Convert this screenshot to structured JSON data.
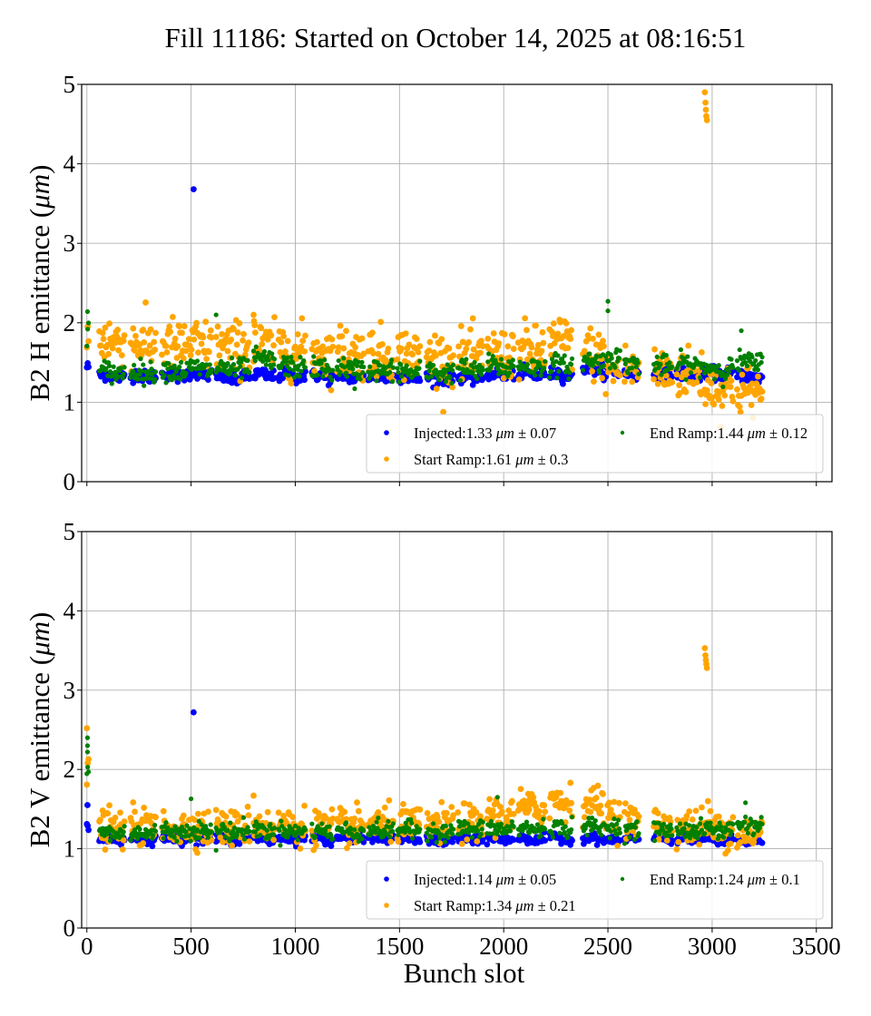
{
  "figure": {
    "title": "Fill 11186: Started on October 14, 2025 at 08:16:51"
  },
  "chart_data": [
    {
      "type": "scatter",
      "panel": "top",
      "title": "",
      "xlabel": "",
      "ylabel": "B2 H emittance (μm)",
      "ylabel_parts": {
        "prefix": "B2 H emittance (",
        "unit": "μm",
        "suffix": ")"
      },
      "xlim": [
        -25,
        3575
      ],
      "ylim": [
        0,
        5
      ],
      "xticks": [
        0,
        500,
        1000,
        1500,
        2000,
        2500,
        3000,
        3500
      ],
      "xtick_labels_visible": false,
      "yticks": [
        0,
        1,
        2,
        3,
        4,
        5
      ],
      "ytick_labels": [
        "0",
        "1",
        "2",
        "3",
        "4",
        "5"
      ],
      "grid": true,
      "legend": {
        "placement": "lower-right",
        "ncol": 2
      },
      "series": [
        {
          "name": "Injected",
          "legend_label": "Injected:1.33",
          "mean": 1.33,
          "std": 0.07,
          "unit": "μm",
          "color": "#0000ff",
          "batches": [
            [
              0,
              10,
              1.45
            ],
            [
              60,
              180,
              1.33
            ],
            [
              210,
              330,
              1.33
            ],
            [
              360,
              480,
              1.34
            ],
            [
              490,
              600,
              1.36
            ],
            [
              620,
              780,
              1.3
            ],
            [
              800,
              900,
              1.34
            ],
            [
              920,
              1050,
              1.33
            ],
            [
              1080,
              1180,
              1.32
            ],
            [
              1200,
              1330,
              1.32
            ],
            [
              1350,
              1470,
              1.32
            ],
            [
              1490,
              1600,
              1.31
            ],
            [
              1630,
              1760,
              1.3
            ],
            [
              1780,
              1900,
              1.31
            ],
            [
              1920,
              2050,
              1.35
            ],
            [
              2070,
              2200,
              1.35
            ],
            [
              2220,
              2330,
              1.35
            ],
            [
              2380,
              2480,
              1.42
            ],
            [
              2490,
              2560,
              1.38
            ],
            [
              2580,
              2650,
              1.35
            ],
            [
              2720,
              2810,
              1.35
            ],
            [
              2830,
              2950,
              1.34
            ],
            [
              2960,
              3100,
              1.36
            ],
            [
              3120,
              3240,
              1.32
            ]
          ],
          "outliers": [
            [
              512,
              3.68
            ]
          ]
        },
        {
          "name": "Start Ramp",
          "legend_label": "Start Ramp:1.61",
          "mean": 1.61,
          "std": 0.3,
          "unit": "μm",
          "color": "#ffa500",
          "batches": [
            [
              0,
              10,
              1.75
            ],
            [
              60,
              180,
              1.78
            ],
            [
              210,
              330,
              1.73
            ],
            [
              360,
              480,
              1.72
            ],
            [
              490,
              600,
              1.72
            ],
            [
              620,
              780,
              1.7
            ],
            [
              800,
              900,
              1.68
            ],
            [
              920,
              1050,
              1.66
            ],
            [
              1080,
              1180,
              1.64
            ],
            [
              1200,
              1330,
              1.63
            ],
            [
              1350,
              1470,
              1.62
            ],
            [
              1490,
              1600,
              1.6
            ],
            [
              1630,
              1760,
              1.56
            ],
            [
              1780,
              1900,
              1.55
            ],
            [
              1920,
              2050,
              1.6
            ],
            [
              2070,
              2200,
              1.65
            ],
            [
              2220,
              2330,
              1.76
            ],
            [
              2380,
              2480,
              1.6
            ],
            [
              2490,
              2560,
              1.4
            ],
            [
              2580,
              2650,
              1.42
            ],
            [
              2720,
              2810,
              1.38
            ],
            [
              2830,
              2950,
              1.36
            ],
            [
              2960,
              3100,
              1.18
            ],
            [
              3120,
              3240,
              1.13
            ]
          ],
          "outliers": [
            [
              800,
              2.1
            ],
            [
              802,
              2.02
            ],
            [
              805,
              1.97
            ],
            [
              2965,
              4.9
            ],
            [
              2968,
              4.77
            ],
            [
              2970,
              4.68
            ],
            [
              2972,
              4.6
            ],
            [
              2975,
              4.55
            ]
          ]
        },
        {
          "name": "End Ramp",
          "legend_label": "End Ramp:1.44",
          "mean": 1.44,
          "std": 0.12,
          "unit": "μm",
          "color": "#008000",
          "batches": [
            [
              0,
              10,
              1.9
            ],
            [
              60,
              180,
              1.38
            ],
            [
              210,
              330,
              1.38
            ],
            [
              360,
              480,
              1.4
            ],
            [
              490,
              600,
              1.42
            ],
            [
              620,
              780,
              1.42
            ],
            [
              800,
              900,
              1.53
            ],
            [
              920,
              1050,
              1.45
            ],
            [
              1080,
              1180,
              1.42
            ],
            [
              1200,
              1330,
              1.42
            ],
            [
              1350,
              1470,
              1.4
            ],
            [
              1490,
              1600,
              1.38
            ],
            [
              1630,
              1760,
              1.38
            ],
            [
              1780,
              1900,
              1.4
            ],
            [
              1920,
              2050,
              1.45
            ],
            [
              2070,
              2200,
              1.45
            ],
            [
              2220,
              2330,
              1.46
            ],
            [
              2380,
              2480,
              1.52
            ],
            [
              2490,
              2560,
              1.55
            ],
            [
              2580,
              2650,
              1.48
            ],
            [
              2720,
              2810,
              1.45
            ],
            [
              2830,
              2950,
              1.47
            ],
            [
              2960,
              3100,
              1.42
            ],
            [
              3120,
              3240,
              1.5
            ]
          ],
          "outliers": [
            [
              3,
              2.14
            ],
            [
              620,
              2.1
            ],
            [
              2500,
              2.27
            ],
            [
              2500,
              2.15
            ],
            [
              3140,
              1.9
            ],
            [
              1285,
              1.17
            ]
          ]
        }
      ]
    },
    {
      "type": "scatter",
      "panel": "bottom",
      "title": "",
      "xlabel": "Bunch slot",
      "ylabel": "B2 V emittance (μm)",
      "ylabel_parts": {
        "prefix": "B2 V emittance (",
        "unit": "μm",
        "suffix": ")"
      },
      "xlim": [
        -25,
        3575
      ],
      "ylim": [
        0,
        5
      ],
      "xticks": [
        0,
        500,
        1000,
        1500,
        2000,
        2500,
        3000,
        3500
      ],
      "xtick_labels": [
        "0",
        "500",
        "1000",
        "1500",
        "2000",
        "2500",
        "3000",
        "3500"
      ],
      "xtick_labels_visible": true,
      "yticks": [
        0,
        1,
        2,
        3,
        4,
        5
      ],
      "ytick_labels": [
        "0",
        "1",
        "2",
        "3",
        "4",
        "5"
      ],
      "grid": true,
      "legend": {
        "placement": "lower-right",
        "ncol": 2
      },
      "series": [
        {
          "name": "Injected",
          "legend_label": "Injected:1.14",
          "mean": 1.14,
          "std": 0.05,
          "unit": "μm",
          "color": "#0000ff",
          "batches": [
            [
              0,
              10,
              1.3
            ],
            [
              60,
              180,
              1.12
            ],
            [
              210,
              330,
              1.12
            ],
            [
              360,
              480,
              1.13
            ],
            [
              490,
              600,
              1.13
            ],
            [
              620,
              780,
              1.12
            ],
            [
              800,
              900,
              1.12
            ],
            [
              920,
              1050,
              1.13
            ],
            [
              1080,
              1180,
              1.12
            ],
            [
              1200,
              1330,
              1.13
            ],
            [
              1350,
              1470,
              1.13
            ],
            [
              1490,
              1600,
              1.12
            ],
            [
              1630,
              1760,
              1.1
            ],
            [
              1780,
              1900,
              1.11
            ],
            [
              1920,
              2050,
              1.12
            ],
            [
              2070,
              2200,
              1.12
            ],
            [
              2220,
              2330,
              1.13
            ],
            [
              2380,
              2480,
              1.13
            ],
            [
              2490,
              2560,
              1.1
            ],
            [
              2580,
              2650,
              1.12
            ],
            [
              2720,
              2810,
              1.12
            ],
            [
              2830,
              2950,
              1.12
            ],
            [
              2960,
              3100,
              1.1
            ],
            [
              3120,
              3240,
              1.1
            ]
          ],
          "outliers": [
            [
              512,
              2.72
            ],
            [
              3,
              1.55
            ]
          ]
        },
        {
          "name": "Start Ramp",
          "legend_label": "Start Ramp:1.34",
          "mean": 1.34,
          "std": 0.21,
          "unit": "μm",
          "color": "#ffa500",
          "batches": [
            [
              0,
              10,
              1.9
            ],
            [
              60,
              180,
              1.25
            ],
            [
              210,
              330,
              1.27
            ],
            [
              360,
              480,
              1.27
            ],
            [
              490,
              600,
              1.28
            ],
            [
              620,
              780,
              1.27
            ],
            [
              800,
              900,
              1.3
            ],
            [
              920,
              1050,
              1.28
            ],
            [
              1080,
              1180,
              1.27
            ],
            [
              1200,
              1330,
              1.27
            ],
            [
              1350,
              1470,
              1.3
            ],
            [
              1490,
              1600,
              1.3
            ],
            [
              1630,
              1760,
              1.3
            ],
            [
              1780,
              1900,
              1.32
            ],
            [
              1920,
              2050,
              1.42
            ],
            [
              2070,
              2200,
              1.5
            ],
            [
              2220,
              2330,
              1.6
            ],
            [
              2380,
              2480,
              1.55
            ],
            [
              2490,
              2560,
              1.42
            ],
            [
              2580,
              2650,
              1.35
            ],
            [
              2720,
              2810,
              1.28
            ],
            [
              2830,
              2950,
              1.27
            ],
            [
              2960,
              3100,
              1.25
            ],
            [
              3120,
              3240,
              1.2
            ]
          ],
          "outliers": [
            [
              0,
              2.52
            ],
            [
              800,
              1.67
            ],
            [
              2965,
              3.53
            ],
            [
              2968,
              3.44
            ],
            [
              2970,
              3.38
            ],
            [
              2972,
              3.33
            ],
            [
              2975,
              3.28
            ],
            [
              2980,
              1.6
            ]
          ]
        },
        {
          "name": "End Ramp",
          "legend_label": "End Ramp:1.24",
          "mean": 1.24,
          "std": 0.1,
          "unit": "μm",
          "color": "#008000",
          "batches": [
            [
              0,
              10,
              2.0
            ],
            [
              60,
              180,
              1.2
            ],
            [
              210,
              330,
              1.2
            ],
            [
              360,
              480,
              1.22
            ],
            [
              490,
              600,
              1.23
            ],
            [
              620,
              780,
              1.22
            ],
            [
              800,
              900,
              1.23
            ],
            [
              920,
              1050,
              1.22
            ],
            [
              1080,
              1180,
              1.22
            ],
            [
              1200,
              1330,
              1.22
            ],
            [
              1350,
              1470,
              1.23
            ],
            [
              1490,
              1600,
              1.24
            ],
            [
              1630,
              1760,
              1.22
            ],
            [
              1780,
              1900,
              1.24
            ],
            [
              1920,
              2050,
              1.25
            ],
            [
              2070,
              2200,
              1.25
            ],
            [
              2220,
              2330,
              1.26
            ],
            [
              2380,
              2480,
              1.27
            ],
            [
              2490,
              2560,
              1.27
            ],
            [
              2580,
              2650,
              1.23
            ],
            [
              2720,
              2810,
              1.23
            ],
            [
              2830,
              2950,
              1.23
            ],
            [
              2960,
              3100,
              1.24
            ],
            [
              3120,
              3240,
              1.3
            ]
          ],
          "outliers": [
            [
              3,
              2.4
            ],
            [
              3,
              2.3
            ],
            [
              3,
              2.22
            ],
            [
              500,
              1.63
            ],
            [
              620,
              0.98
            ],
            [
              1970,
              1.65
            ],
            [
              3160,
              1.58
            ]
          ]
        }
      ]
    }
  ]
}
